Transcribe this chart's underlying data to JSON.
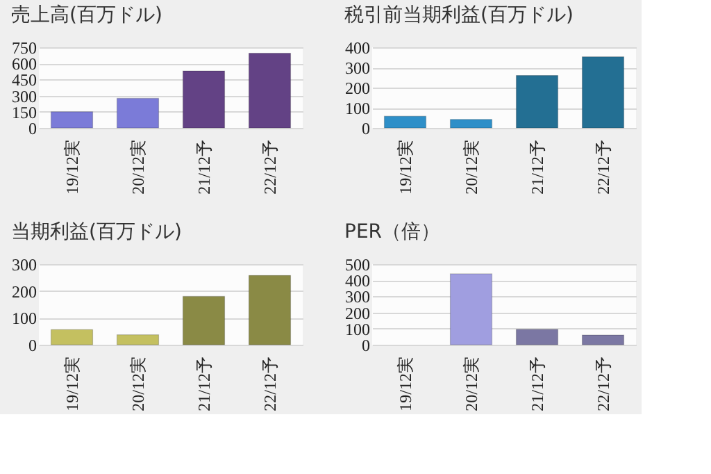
{
  "chart_data": [
    {
      "type": "bar",
      "title": "売上高(百万ドル)",
      "categories": [
        "19/12実",
        "20/12実",
        "21/12予",
        "22/12予"
      ],
      "values": [
        150,
        275,
        530,
        695
      ],
      "colors": [
        "#7b7bd8",
        "#7b7bd8",
        "#634285",
        "#634285"
      ],
      "ylim": [
        0,
        750
      ],
      "yticks": [
        0,
        150,
        300,
        450,
        600,
        750
      ],
      "grid": "y"
    },
    {
      "type": "bar",
      "title": "税引前当期利益(百万ドル)",
      "categories": [
        "19/12実",
        "20/12実",
        "21/12予",
        "22/12予"
      ],
      "values": [
        58,
        42,
        260,
        353
      ],
      "colors": [
        "#2e8fc8",
        "#2e8fc8",
        "#236f93",
        "#236f93"
      ],
      "ylim": [
        0,
        400
      ],
      "yticks": [
        0,
        100,
        200,
        300,
        400
      ],
      "grid": "y"
    },
    {
      "type": "bar",
      "title": "当期利益(百万ドル)",
      "categories": [
        "19/12実",
        "20/12実",
        "21/12予",
        "22/12予"
      ],
      "values": [
        56,
        37,
        180,
        258
      ],
      "colors": [
        "#c4c060",
        "#c4c060",
        "#8a8a45",
        "#8a8a45"
      ],
      "ylim": [
        0,
        300
      ],
      "yticks": [
        0,
        100,
        200,
        300
      ],
      "grid": "y"
    },
    {
      "type": "bar",
      "title": "PER（倍）",
      "categories": [
        "19/12実",
        "20/12実",
        "21/12予",
        "22/12予"
      ],
      "values": [
        null,
        440,
        95,
        60
      ],
      "colors": [
        "#a09ee0",
        "#a09ee0",
        "#7b77a3",
        "#7b77a3"
      ],
      "ylim": [
        0,
        500
      ],
      "yticks": [
        0,
        100,
        200,
        300,
        400,
        500
      ],
      "grid": "y"
    }
  ]
}
